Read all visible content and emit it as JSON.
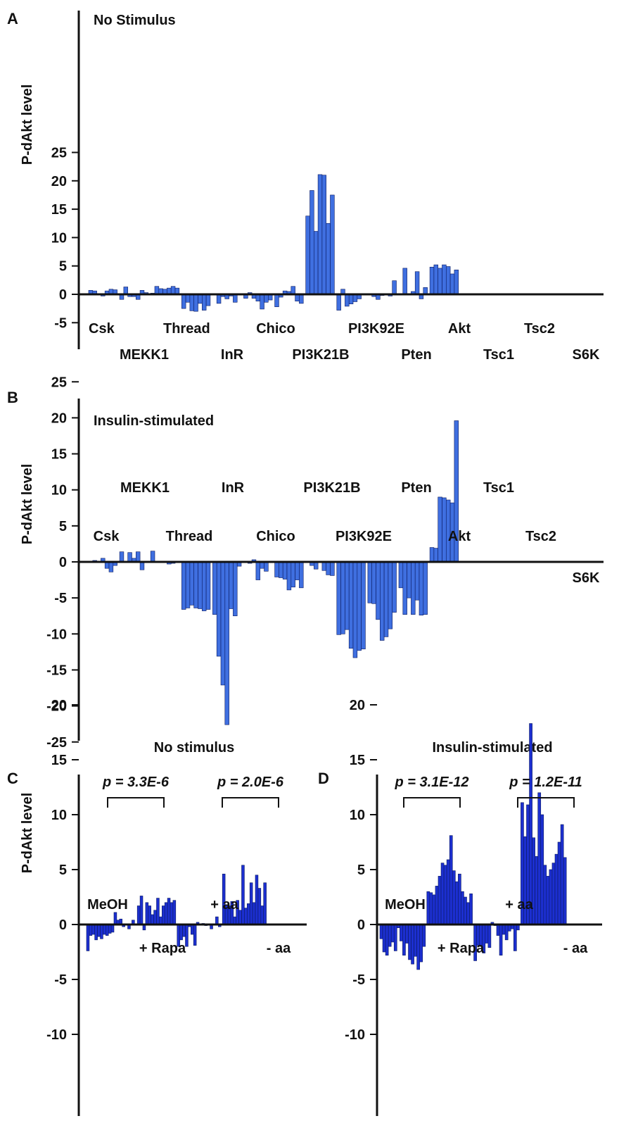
{
  "panel_a": {
    "letter": "A",
    "title": "No Stimulus",
    "ylabel": "P-dAkt level",
    "yticks": [
      "25",
      "20",
      "15",
      "10",
      "5",
      "0",
      "-5"
    ],
    "ylim": [
      -5,
      25
    ],
    "color": "#3f6fe0",
    "groups": [
      {
        "label": "Csk",
        "row": "upper",
        "values": [
          0.7,
          0.6,
          0.0,
          -0.3,
          0.6,
          0.9,
          0.8
        ]
      },
      {
        "label": "MEKK1",
        "row": "lower",
        "values": [
          -0.9,
          1.3,
          -0.4,
          -0.4,
          -0.9,
          0.7,
          0.3
        ]
      },
      {
        "label": "Thread",
        "row": "upper",
        "values": [
          0.2,
          1.4,
          1.0,
          0.9,
          1.1,
          1.4,
          1.1
        ]
      },
      {
        "label": "InR",
        "row": "lower",
        "values": [
          -2.5,
          -1.4,
          -2.9,
          -3.0,
          -1.6,
          -2.8,
          -2.0
        ]
      },
      {
        "label": "Chico",
        "row": "upper",
        "values": [
          0.0,
          -1.6,
          -0.4,
          -0.8,
          -0.3,
          -1.4,
          0.0
        ]
      },
      {
        "label": "PI3K21B",
        "row": "lower",
        "values": [
          -0.7,
          0.3,
          -0.7,
          -1.2,
          -2.6,
          -1.4,
          -1.0
        ]
      },
      {
        "label": "PI3K92E",
        "row": "upper",
        "values": [
          -2.2,
          -0.5,
          0.6,
          0.5,
          1.4,
          -1.2,
          -1.6
        ]
      },
      {
        "label": "Pten",
        "row": "lower",
        "values": [
          13.8,
          18.3,
          11.1,
          21.1,
          21.0,
          12.5,
          17.5
        ]
      },
      {
        "label": "Akt",
        "row": "upper",
        "values": [
          -2.8,
          0.9,
          -2.1,
          -1.7,
          -1.3,
          -0.8,
          0.0
        ]
      },
      {
        "label": "Tsc1",
        "row": "lower",
        "values": [
          0.0,
          -0.4,
          -0.9,
          -0.2,
          0.0,
          -0.3,
          2.4
        ]
      },
      {
        "label": "Tsc2",
        "row": "upper",
        "values": [
          0.0,
          4.6,
          0.0,
          0.5,
          4.0,
          -0.8,
          1.2
        ]
      },
      {
        "label": "S6K",
        "row": "lower",
        "values": [
          4.8,
          5.2,
          4.6,
          5.2,
          4.9,
          3.6,
          4.3
        ]
      }
    ]
  },
  "panel_b": {
    "letter": "B",
    "title": "Insulin-stimulated",
    "ylabel": "P-dAkt level",
    "yticks": [
      "25",
      "20",
      "15",
      "10",
      "5",
      "0",
      "-5",
      "-10",
      "-15",
      "-20",
      "-25"
    ],
    "ylim": [
      -25,
      25
    ],
    "color": "#3f6fe0",
    "groups": [
      {
        "label": "Csk",
        "row": "upper",
        "values": [
          0.0,
          0.2,
          0.0,
          0.5,
          -0.9,
          -1.4,
          -0.5
        ]
      },
      {
        "label": "MEKK1",
        "row": "lower",
        "values": [
          1.4,
          0.0,
          1.3,
          0.5,
          1.4,
          -1.1,
          0.0
        ]
      },
      {
        "label": "Thread",
        "row": "upper",
        "values": [
          1.5,
          -0.1,
          0.0,
          0.0,
          -0.3,
          -0.2,
          0.0
        ]
      },
      {
        "label": "InR",
        "row": "lower",
        "values": [
          -6.6,
          -6.4,
          -6.0,
          -6.4,
          -6.5,
          -6.8,
          -6.6
        ]
      },
      {
        "label": "Chico",
        "row": "upper",
        "values": [
          -7.3,
          -13.1,
          -17.1,
          -22.6,
          -6.5,
          -7.5,
          -0.6
        ]
      },
      {
        "label": "PI3K21B",
        "row": "lower",
        "values": [
          0.0,
          -0.2,
          0.3,
          -2.5,
          -0.9,
          -1.3,
          0.0
        ]
      },
      {
        "label": "PI3K92E",
        "row": "upper",
        "values": [
          -2.1,
          -2.2,
          -2.4,
          -3.9,
          -3.5,
          -2.5,
          -3.6
        ]
      },
      {
        "label": "Pten",
        "row": "lower",
        "values": [
          0.0,
          -0.5,
          -1.0,
          0.0,
          -1.2,
          -1.8,
          -1.9
        ]
      },
      {
        "label": "Akt",
        "row": "upper",
        "values": [
          -10.1,
          -10.0,
          -9.4,
          -12.0,
          -13.3,
          -12.3,
          -12.1
        ]
      },
      {
        "label": "Tsc1",
        "row": "lower",
        "values": [
          -5.7,
          -5.8,
          -8.0,
          -10.9,
          -10.4,
          -9.3,
          -7.0
        ]
      },
      {
        "label": "Tsc2",
        "row": "upper",
        "values": [
          -3.6,
          -7.3,
          -5.0,
          -7.3,
          -5.3,
          -7.4,
          -7.3
        ]
      },
      {
        "label": "S6K",
        "row": "lower",
        "values": [
          2.0,
          1.9,
          9.0,
          8.9,
          8.6,
          8.2,
          19.6
        ]
      }
    ]
  },
  "panel_c": {
    "letter": "C",
    "title": "No stimulus",
    "ylabel": "P-dAkt level",
    "yticks": [
      "20",
      "15",
      "10",
      "5",
      "0",
      "-5",
      "-10"
    ],
    "ylim": [
      -10,
      20
    ],
    "color": "#1c2fd0",
    "brackets": [
      {
        "label": "p = 3.3E-6"
      },
      {
        "label": "p = 2.0E-6"
      }
    ],
    "groups": [
      {
        "label": "MeOH",
        "row": "upper",
        "values": [
          -2.4,
          -1.0,
          -0.9,
          -1.4,
          -1.1,
          -1.3,
          -0.9,
          -1.0,
          -0.8,
          -0.7,
          1.1,
          0.4,
          0.5,
          -0.2,
          0.0,
          -0.4
        ]
      },
      {
        "label": "+ Rapa",
        "row": "lower",
        "values": [
          0.4,
          0.0,
          1.7,
          2.6,
          -0.5,
          2.0,
          1.7,
          0.9,
          1.3,
          2.4,
          0.7,
          1.7,
          2.0,
          2.4,
          2.0,
          2.2
        ]
      },
      {
        "label": "+ aa",
        "row": "upper",
        "values": [
          -2.0,
          -1.4,
          -1.1,
          -2.0,
          -0.2,
          -0.9,
          -1.9,
          0.2,
          0.0,
          0.1,
          -0.1,
          0.0,
          -0.4,
          0.0,
          0.7,
          -0.2
        ]
      },
      {
        "label": "- aa",
        "row": "lower",
        "values": [
          4.6,
          1.8,
          1.7,
          2.1,
          0.7,
          2.2,
          1.3,
          5.4,
          1.5,
          1.9,
          3.8,
          2.0,
          4.5,
          3.3,
          1.7,
          3.8
        ]
      }
    ]
  },
  "panel_d": {
    "letter": "D",
    "title": "Insulin-stimulated",
    "ylabel": "P-dAkt level",
    "yticks": [
      "20",
      "15",
      "10",
      "5",
      "0",
      "-5",
      "-10"
    ],
    "ylim": [
      -10,
      20
    ],
    "color": "#1c2fd0",
    "brackets": [
      {
        "label": "p = 3.1E-12"
      },
      {
        "label": "p = 1.2E-11"
      }
    ],
    "groups": [
      {
        "label": "MeOH",
        "row": "upper",
        "values": [
          -1.3,
          -2.5,
          -2.8,
          -2.0,
          -1.6,
          -2.4,
          -0.3,
          -1.5,
          -2.8,
          -1.7,
          -3.2,
          -3.6,
          -2.9,
          -4.1,
          -3.4,
          -2.0
        ]
      },
      {
        "label": "+ Rapa",
        "row": "lower",
        "values": [
          3.0,
          2.9,
          2.7,
          3.5,
          4.4,
          5.6,
          5.4,
          5.9,
          8.1,
          4.9,
          3.9,
          4.6,
          3.0,
          2.5,
          2.0,
          2.8
        ]
      },
      {
        "label": "+ aa",
        "row": "upper",
        "values": [
          -3.3,
          -1.9,
          -2.0,
          -2.6,
          -1.7,
          -2.1,
          0.2,
          -0.1,
          -1.0,
          -2.8,
          -0.9,
          -1.4,
          -0.6,
          -0.4,
          -2.4,
          -0.5
        ]
      },
      {
        "label": "- aa",
        "row": "lower",
        "values": [
          11.1,
          8.0,
          10.9,
          18.3,
          7.9,
          6.2,
          12.0,
          10.0,
          5.4,
          4.4,
          5.0,
          5.6,
          6.4,
          7.5,
          9.1,
          6.1
        ]
      }
    ]
  }
}
